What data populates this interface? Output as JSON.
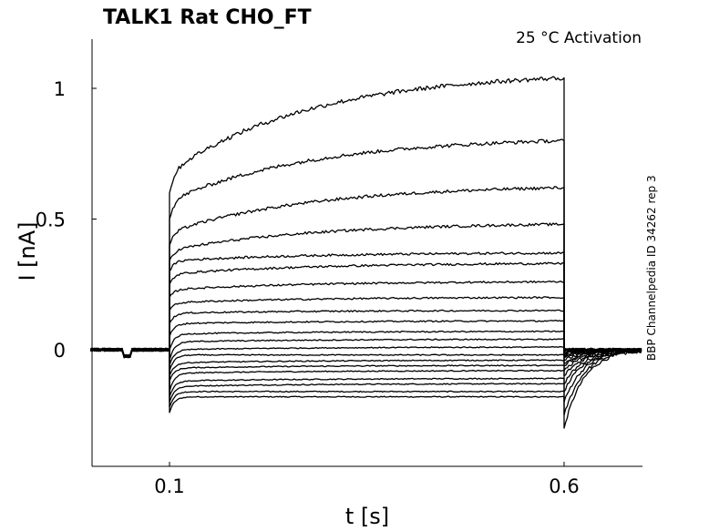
{
  "chart_data": {
    "type": "line",
    "title": "TALK1  Rat  CHO_FT",
    "condition": "25 °C  Activation",
    "side_label": "BBP Channelpedia ID 34262 rep 3",
    "xlabel": "t [s]",
    "ylabel": "I [nA]",
    "xlim": [
      0.0,
      0.7
    ],
    "ylim": [
      -0.45,
      1.2
    ],
    "x_ticks": [
      {
        "value": 0.1,
        "label": "0.1"
      },
      {
        "value": 0.6,
        "label": "0.6"
      }
    ],
    "y_ticks": [
      {
        "value": 0,
        "label": "0"
      },
      {
        "value": 0.5,
        "label": "0.5"
      },
      {
        "value": 1,
        "label": "1"
      }
    ],
    "grid": false,
    "line_color": "#000000",
    "protocol": {
      "pulse_start": 0.1,
      "pulse_end": 0.6
    },
    "series": [
      {
        "onset": -0.24,
        "early": -0.18,
        "end": -0.18,
        "tail": -0.3
      },
      {
        "onset": -0.22,
        "early": -0.16,
        "end": -0.16,
        "tail": -0.25
      },
      {
        "onset": -0.2,
        "early": -0.14,
        "end": -0.13,
        "tail": -0.2
      },
      {
        "onset": -0.18,
        "early": -0.12,
        "end": -0.11,
        "tail": -0.16
      },
      {
        "onset": -0.16,
        "early": -0.09,
        "end": -0.08,
        "tail": -0.13
      },
      {
        "onset": -0.12,
        "early": -0.07,
        "end": -0.06,
        "tail": -0.1
      },
      {
        "onset": -0.1,
        "early": -0.05,
        "end": -0.04,
        "tail": -0.08
      },
      {
        "onset": -0.08,
        "early": -0.02,
        "end": -0.02,
        "tail": -0.06
      },
      {
        "onset": -0.06,
        "early": 0.0,
        "end": 0.01,
        "tail": -0.05
      },
      {
        "onset": -0.04,
        "early": 0.03,
        "end": 0.04,
        "tail": -0.04
      },
      {
        "onset": 0.0,
        "early": 0.06,
        "end": 0.07,
        "tail": -0.03
      },
      {
        "onset": 0.05,
        "early": 0.1,
        "end": 0.11,
        "tail": -0.02
      },
      {
        "onset": 0.1,
        "early": 0.14,
        "end": 0.15,
        "tail": -0.02
      },
      {
        "onset": 0.15,
        "early": 0.18,
        "end": 0.2,
        "tail": -0.01
      },
      {
        "onset": 0.2,
        "early": 0.23,
        "end": 0.26,
        "tail": -0.01
      },
      {
        "onset": 0.25,
        "early": 0.29,
        "end": 0.33,
        "tail": -0.01
      },
      {
        "onset": 0.3,
        "early": 0.34,
        "end": 0.37,
        "tail": 0.0
      },
      {
        "onset": 0.34,
        "early": 0.38,
        "end": 0.48,
        "tail": 0.0
      },
      {
        "onset": 0.4,
        "early": 0.45,
        "end": 0.62,
        "tail": 0.0
      },
      {
        "onset": 0.5,
        "early": 0.57,
        "end": 0.8,
        "tail": 0.0
      },
      {
        "onset": 0.6,
        "early": 0.68,
        "end": 1.04,
        "tail": 0.0
      }
    ]
  }
}
